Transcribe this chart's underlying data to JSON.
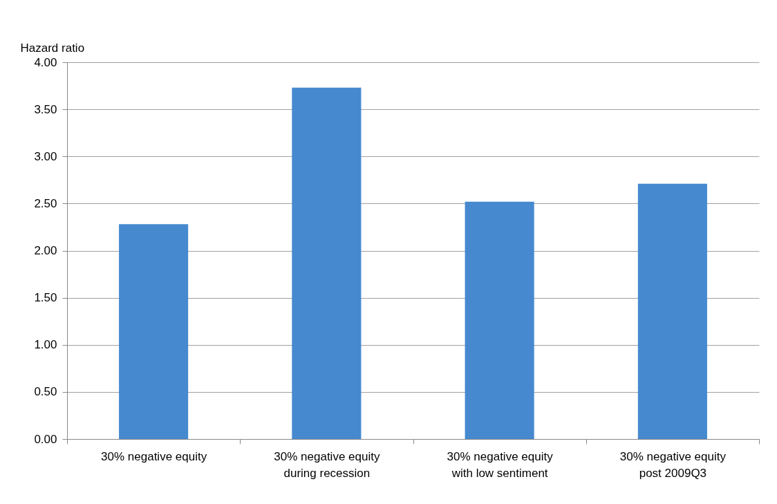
{
  "chart_data": {
    "type": "bar",
    "ylabel": "Hazard ratio",
    "categories": [
      "30% negative equity",
      "30% negative equity during recession",
      "30% negative equity with low sentiment",
      "30% negative equity post 2009Q3"
    ],
    "values": [
      2.28,
      3.73,
      2.52,
      2.71
    ],
    "color": "#4689cf",
    "ylim": [
      0,
      4
    ],
    "yticks": [
      {
        "value": 0,
        "label": "0.00"
      },
      {
        "value": 0.5,
        "label": "0.50"
      },
      {
        "value": 1,
        "label": "1.00"
      },
      {
        "value": 1.5,
        "label": "1.50"
      },
      {
        "value": 2,
        "label": "2.00"
      },
      {
        "value": 2.5,
        "label": "2.50"
      },
      {
        "value": 3,
        "label": "3.00"
      },
      {
        "value": 3.5,
        "label": "3.50"
      },
      {
        "value": 4,
        "label": "4.00"
      }
    ],
    "grid": "y"
  }
}
